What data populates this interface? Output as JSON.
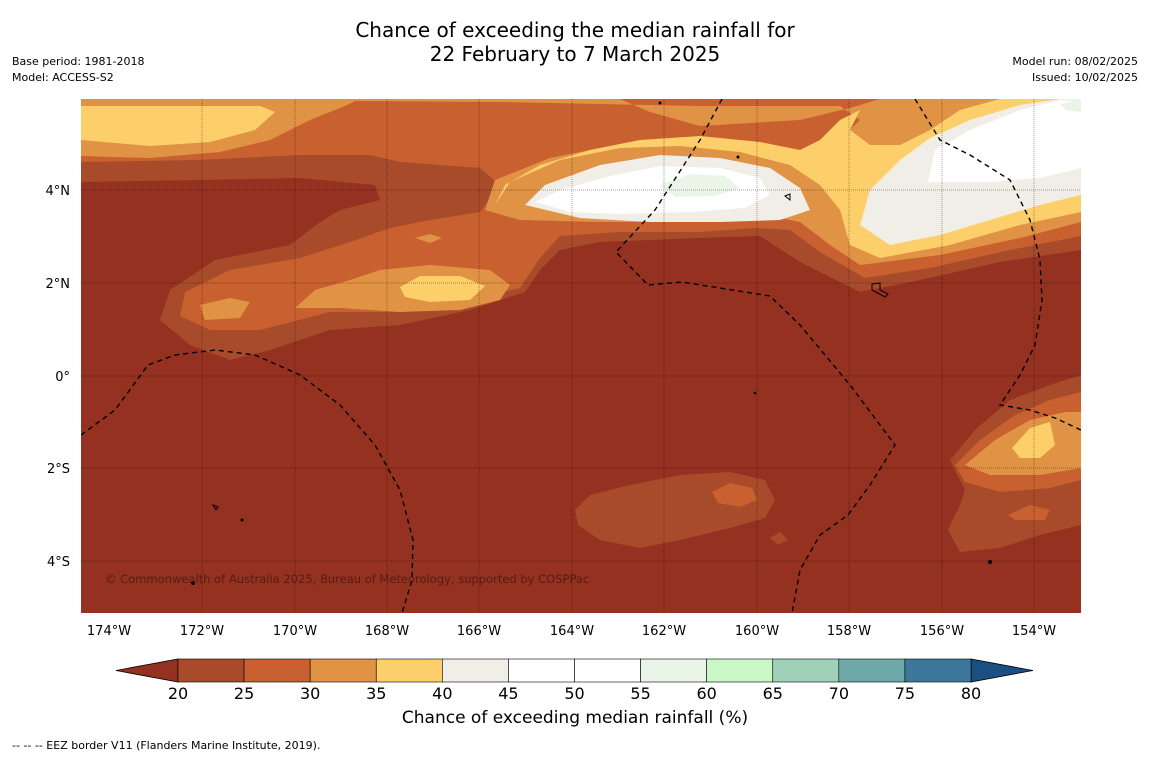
{
  "title": {
    "line1": "Chance of exceeding the median rainfall for",
    "line2": "22 February to 7 March 2025"
  },
  "meta_left": {
    "base_period": "Base period: 1981-2018",
    "model": "Model: ACCESS-S2"
  },
  "meta_right": {
    "model_run": "Model run: 08/02/2025",
    "issued": "Issued: 10/02/2025"
  },
  "map": {
    "longitude_labels": [
      "174°W",
      "172°W",
      "170°W",
      "168°W",
      "166°W",
      "164°W",
      "162°W",
      "160°W",
      "158°W",
      "156°W",
      "154°W"
    ],
    "latitude_labels": [
      "4°N",
      "2°N",
      "0°",
      "2°S",
      "4°S"
    ],
    "copyright": "© Commonwealth of Australia 2025, Bureau of Meteorology, supported by COSPPac"
  },
  "colorbar": {
    "ticks": [
      "20",
      "25",
      "30",
      "35",
      "40",
      "45",
      "50",
      "55",
      "60",
      "65",
      "70",
      "75",
      "80"
    ],
    "colors": [
      "#a84b2a",
      "#c8602f",
      "#e09345",
      "#fdcf6b",
      "#f1ede7",
      "#ffffff",
      "#ffffff",
      "#eaf5e8",
      "#c9f8c6",
      "#9fd0b8",
      "#6fa8a8",
      "#3d789c"
    ],
    "under_color": "#943120",
    "over_color": "#1a4f84",
    "label": "Chance of exceeding median rainfall (%)"
  },
  "footnote": "--  --  -- EEZ border V11 (Flanders Marine Institute, 2019)."
}
